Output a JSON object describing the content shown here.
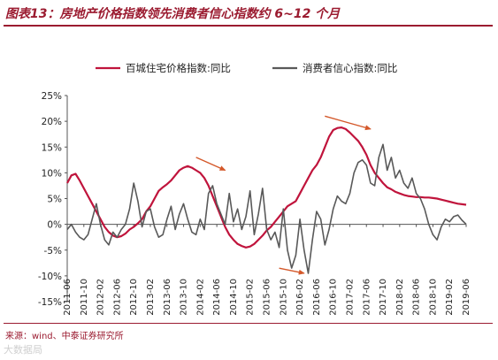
{
  "header": {
    "title": "图表13：房地产价格指数领先消费者信心指数约 6~12 个月"
  },
  "footer": {
    "source": "来源：wind、中泰证券研究所",
    "watermark": "大数据局"
  },
  "colors": {
    "brand": "#9b1b30",
    "series_price": "#c0143c",
    "series_confidence": "#595959",
    "arrow": "#d4582a"
  },
  "chart_data": {
    "type": "line",
    "title": "",
    "xlabel": "",
    "ylabel": "",
    "ylim": [
      -15,
      25
    ],
    "y_ticks": [
      25,
      20,
      15,
      10,
      5,
      0,
      -5,
      -10,
      -15
    ],
    "y_tick_labels": [
      "25%",
      "20%",
      "15%",
      "10%",
      "5%",
      "0%",
      "-5%",
      "-10%",
      "-15%"
    ],
    "x_range": [
      "2011-06",
      "2019-06"
    ],
    "x_tick_labels": [
      "2011-06",
      "2011-10",
      "2012-02",
      "2012-06",
      "2012-10",
      "2013-02",
      "2013-06",
      "2013-10",
      "2014-02",
      "2014-06",
      "2014-10",
      "2015-02",
      "2015-06",
      "2015-10",
      "2016-02",
      "2016-06",
      "2016-10",
      "2017-02",
      "2017-06",
      "2017-10",
      "2018-02",
      "2018-06",
      "2018-10",
      "2019-02",
      "2019-06"
    ],
    "legend_position": "top",
    "grid": false,
    "series": [
      {
        "name": "百城住宅价格指数:同比",
        "color": "#c0143c",
        "points": [
          [
            "2011-06",
            8.0
          ],
          [
            "2011-07",
            9.5
          ],
          [
            "2011-08",
            9.8
          ],
          [
            "2011-09",
            8.5
          ],
          [
            "2011-10",
            7.0
          ],
          [
            "2011-11",
            5.5
          ],
          [
            "2011-12",
            4.0
          ],
          [
            "2012-01",
            2.5
          ],
          [
            "2012-02",
            1.0
          ],
          [
            "2012-03",
            -0.5
          ],
          [
            "2012-04",
            -1.5
          ],
          [
            "2012-05",
            -2.2
          ],
          [
            "2012-06",
            -2.5
          ],
          [
            "2012-07",
            -2.3
          ],
          [
            "2012-08",
            -1.8
          ],
          [
            "2012-09",
            -1.0
          ],
          [
            "2012-10",
            -0.5
          ],
          [
            "2012-11",
            0.2
          ],
          [
            "2012-12",
            1.0
          ],
          [
            "2013-01",
            2.5
          ],
          [
            "2013-02",
            3.5
          ],
          [
            "2013-03",
            5.0
          ],
          [
            "2013-04",
            6.5
          ],
          [
            "2013-05",
            7.2
          ],
          [
            "2013-06",
            7.8
          ],
          [
            "2013-07",
            8.5
          ],
          [
            "2013-08",
            9.5
          ],
          [
            "2013-09",
            10.5
          ],
          [
            "2013-10",
            11.0
          ],
          [
            "2013-11",
            11.3
          ],
          [
            "2013-12",
            11.0
          ],
          [
            "2014-01",
            10.5
          ],
          [
            "2014-02",
            10.0
          ],
          [
            "2014-03",
            9.0
          ],
          [
            "2014-04",
            7.5
          ],
          [
            "2014-05",
            5.5
          ],
          [
            "2014-06",
            3.5
          ],
          [
            "2014-07",
            1.5
          ],
          [
            "2014-08",
            -0.5
          ],
          [
            "2014-09",
            -2.0
          ],
          [
            "2014-10",
            -3.0
          ],
          [
            "2014-11",
            -3.8
          ],
          [
            "2014-12",
            -4.2
          ],
          [
            "2015-01",
            -4.5
          ],
          [
            "2015-02",
            -4.3
          ],
          [
            "2015-03",
            -3.8
          ],
          [
            "2015-04",
            -3.0
          ],
          [
            "2015-05",
            -2.2
          ],
          [
            "2015-06",
            -1.2
          ],
          [
            "2015-07",
            -0.5
          ],
          [
            "2015-08",
            0.5
          ],
          [
            "2015-09",
            1.5
          ],
          [
            "2015-10",
            2.5
          ],
          [
            "2015-11",
            3.5
          ],
          [
            "2015-12",
            4.0
          ],
          [
            "2016-01",
            4.5
          ],
          [
            "2016-02",
            6.0
          ],
          [
            "2016-03",
            7.5
          ],
          [
            "2016-04",
            9.0
          ],
          [
            "2016-05",
            10.5
          ],
          [
            "2016-06",
            11.5
          ],
          [
            "2016-07",
            13.0
          ],
          [
            "2016-08",
            15.0
          ],
          [
            "2016-09",
            17.0
          ],
          [
            "2016-10",
            18.3
          ],
          [
            "2016-11",
            18.7
          ],
          [
            "2016-12",
            18.8
          ],
          [
            "2017-01",
            18.5
          ],
          [
            "2017-02",
            17.8
          ],
          [
            "2017-03",
            17.0
          ],
          [
            "2017-04",
            16.2
          ],
          [
            "2017-05",
            15.0
          ],
          [
            "2017-06",
            13.5
          ],
          [
            "2017-07",
            11.5
          ],
          [
            "2017-08",
            10.0
          ],
          [
            "2017-09",
            9.0
          ],
          [
            "2017-10",
            8.0
          ],
          [
            "2017-11",
            7.2
          ],
          [
            "2017-12",
            6.8
          ],
          [
            "2018-01",
            6.3
          ],
          [
            "2018-02",
            6.0
          ],
          [
            "2018-03",
            5.7
          ],
          [
            "2018-04",
            5.5
          ],
          [
            "2018-05",
            5.4
          ],
          [
            "2018-06",
            5.3
          ],
          [
            "2018-07",
            5.3
          ],
          [
            "2018-08",
            5.2
          ],
          [
            "2018-09",
            5.2
          ],
          [
            "2018-10",
            5.1
          ],
          [
            "2018-11",
            5.0
          ],
          [
            "2018-12",
            4.8
          ],
          [
            "2019-01",
            4.6
          ],
          [
            "2019-02",
            4.4
          ],
          [
            "2019-03",
            4.2
          ],
          [
            "2019-04",
            4.0
          ],
          [
            "2019-05",
            3.9
          ],
          [
            "2019-06",
            3.8
          ]
        ]
      },
      {
        "name": "消费者信心指数:同比",
        "color": "#595959",
        "points": [
          [
            "2011-06",
            -1.0
          ],
          [
            "2011-07",
            0.0
          ],
          [
            "2011-08",
            -1.5
          ],
          [
            "2011-09",
            -2.5
          ],
          [
            "2011-10",
            -3.0
          ],
          [
            "2011-11",
            -2.0
          ],
          [
            "2011-12",
            1.0
          ],
          [
            "2012-01",
            4.0
          ],
          [
            "2012-02",
            0.0
          ],
          [
            "2012-03",
            -3.0
          ],
          [
            "2012-04",
            -4.0
          ],
          [
            "2012-05",
            -1.5
          ],
          [
            "2012-06",
            -2.5
          ],
          [
            "2012-07",
            -1.0
          ],
          [
            "2012-08",
            0.0
          ],
          [
            "2012-09",
            3.0
          ],
          [
            "2012-10",
            8.0
          ],
          [
            "2012-11",
            4.5
          ],
          [
            "2012-12",
            -0.5
          ],
          [
            "2013-01",
            2.5
          ],
          [
            "2013-02",
            3.0
          ],
          [
            "2013-03",
            -0.5
          ],
          [
            "2013-04",
            -2.5
          ],
          [
            "2013-05",
            -2.0
          ],
          [
            "2013-06",
            1.0
          ],
          [
            "2013-07",
            3.5
          ],
          [
            "2013-08",
            -1.0
          ],
          [
            "2013-09",
            2.0
          ],
          [
            "2013-10",
            4.0
          ],
          [
            "2013-11",
            1.0
          ],
          [
            "2013-12",
            -1.5
          ],
          [
            "2014-01",
            -2.0
          ],
          [
            "2014-02",
            1.0
          ],
          [
            "2014-03",
            -1.0
          ],
          [
            "2014-04",
            6.0
          ],
          [
            "2014-05",
            7.5
          ],
          [
            "2014-06",
            4.0
          ],
          [
            "2014-07",
            2.0
          ],
          [
            "2014-08",
            0.0
          ],
          [
            "2014-09",
            6.0
          ],
          [
            "2014-10",
            0.5
          ],
          [
            "2014-11",
            3.0
          ],
          [
            "2014-12",
            -1.0
          ],
          [
            "2015-01",
            1.5
          ],
          [
            "2015-02",
            6.5
          ],
          [
            "2015-03",
            -2.0
          ],
          [
            "2015-04",
            2.0
          ],
          [
            "2015-05",
            7.0
          ],
          [
            "2015-06",
            -1.0
          ],
          [
            "2015-07",
            -3.0
          ],
          [
            "2015-08",
            -1.5
          ],
          [
            "2015-09",
            -4.5
          ],
          [
            "2015-10",
            3.0
          ],
          [
            "2015-11",
            -5.0
          ],
          [
            "2015-12",
            -8.5
          ],
          [
            "2016-01",
            -6.0
          ],
          [
            "2016-02",
            1.0
          ],
          [
            "2016-03",
            -5.0
          ],
          [
            "2016-04",
            -9.5
          ],
          [
            "2016-05",
            -3.0
          ],
          [
            "2016-06",
            2.5
          ],
          [
            "2016-07",
            1.0
          ],
          [
            "2016-08",
            -4.0
          ],
          [
            "2016-09",
            -1.0
          ],
          [
            "2016-10",
            3.0
          ],
          [
            "2016-11",
            5.5
          ],
          [
            "2016-12",
            4.5
          ],
          [
            "2017-01",
            4.0
          ],
          [
            "2017-02",
            6.0
          ],
          [
            "2017-03",
            10.0
          ],
          [
            "2017-04",
            12.0
          ],
          [
            "2017-05",
            12.5
          ],
          [
            "2017-06",
            11.5
          ],
          [
            "2017-07",
            8.0
          ],
          [
            "2017-08",
            7.5
          ],
          [
            "2017-09",
            13.0
          ],
          [
            "2017-10",
            15.5
          ],
          [
            "2017-11",
            10.5
          ],
          [
            "2017-12",
            13.0
          ],
          [
            "2018-01",
            9.0
          ],
          [
            "2018-02",
            10.5
          ],
          [
            "2018-03",
            8.0
          ],
          [
            "2018-04",
            7.0
          ],
          [
            "2018-05",
            9.0
          ],
          [
            "2018-06",
            6.0
          ],
          [
            "2018-07",
            5.0
          ],
          [
            "2018-08",
            3.0
          ],
          [
            "2018-09",
            0.0
          ],
          [
            "2018-10",
            -2.0
          ],
          [
            "2018-11",
            -3.0
          ],
          [
            "2018-12",
            -0.5
          ],
          [
            "2019-01",
            1.0
          ],
          [
            "2019-02",
            0.5
          ],
          [
            "2019-03",
            1.5
          ],
          [
            "2019-04",
            1.8
          ],
          [
            "2019-05",
            0.8
          ],
          [
            "2019-06",
            0.0
          ]
        ]
      }
    ],
    "annotations": [
      {
        "type": "arrow",
        "from": [
          "2014-01",
          13.0
        ],
        "to": [
          "2014-08",
          10.5
        ],
        "color": "#d4582a"
      },
      {
        "type": "arrow",
        "from": [
          "2015-09",
          -8.5
        ],
        "to": [
          "2016-03",
          -9.5
        ],
        "color": "#d4582a"
      },
      {
        "type": "arrow",
        "from": [
          "2016-08",
          21.0
        ],
        "to": [
          "2017-07",
          18.5
        ],
        "color": "#d4582a"
      }
    ]
  }
}
